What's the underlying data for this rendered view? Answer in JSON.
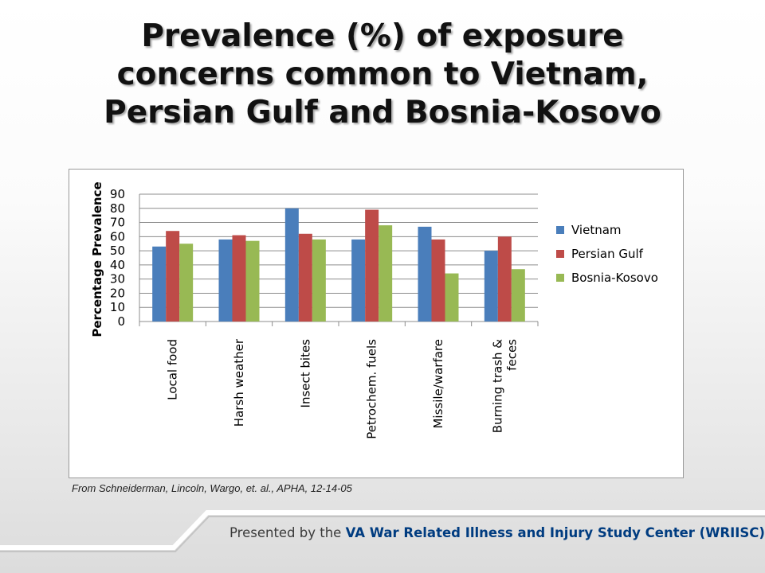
{
  "title_lines": [
    "Prevalence (%) of exposure",
    "concerns common to Vietnam,",
    "Persian Gulf and Bosnia-Kosovo"
  ],
  "chart_data": {
    "type": "bar",
    "title": "",
    "xlabel": "",
    "ylabel": "Percentage Prevalence",
    "ylim": [
      0,
      90
    ],
    "yticks": [
      0,
      10,
      20,
      30,
      40,
      50,
      60,
      70,
      80,
      90
    ],
    "grid": true,
    "legend_position": "right",
    "categories": [
      [
        "Local food"
      ],
      [
        "Harsh weather"
      ],
      [
        "Insect bites"
      ],
      [
        "Petrochem. fuels"
      ],
      [
        "Missile/warfare"
      ],
      [
        "Burning trash &",
        "feces"
      ]
    ],
    "series": [
      {
        "name": "Vietnam",
        "color": "#4a7ebb",
        "values": [
          53,
          58,
          80,
          58,
          67,
          50
        ]
      },
      {
        "name": "Persian Gulf",
        "color": "#be4b48",
        "values": [
          64,
          61,
          62,
          79,
          58,
          60
        ]
      },
      {
        "name": "Bosnia-Kosovo",
        "color": "#98b954",
        "values": [
          55,
          57,
          58,
          68,
          34,
          37
        ]
      }
    ]
  },
  "citation": "From Schneiderman, Lincoln, Wargo, et. al., APHA, 12-14-05",
  "footer": {
    "prefix": "Presented by the ",
    "organization": "VA War Related Illness and Injury Study Center (WRIISC)"
  }
}
